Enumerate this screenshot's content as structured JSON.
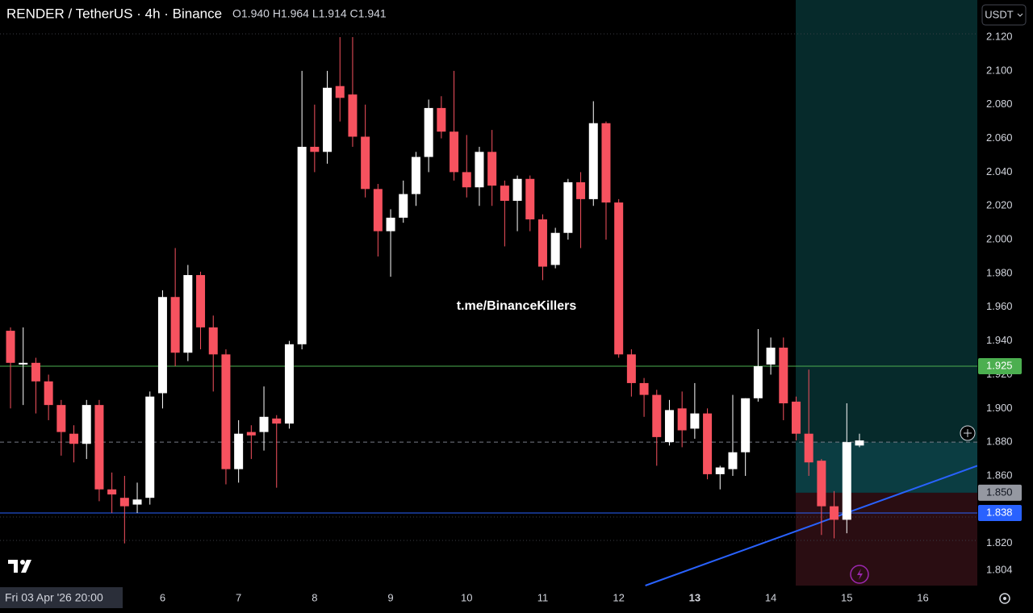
{
  "chart_data": {
    "type": "candlestick",
    "title": "RENDER / TetherUS · 4h · Binance",
    "ohlc_summary": "O1.940 H1.964 L1.914 C1.941",
    "watermark": "t.me/BinanceKillers",
    "currency": "USDT",
    "crosshair_label": "Fri 03 Apr '26  20:00",
    "up_color": "#ffffff",
    "down_color": "#f7525f",
    "open": [
      1.946,
      1.926,
      1.927,
      1.916,
      1.902,
      1.885,
      1.879,
      1.902,
      1.852,
      1.847,
      1.843,
      1.847,
      1.909,
      1.966,
      1.933,
      1.979,
      1.948,
      1.932,
      1.864,
      1.886,
      1.886,
      1.894,
      1.891,
      1.938,
      2.055,
      2.052,
      2.091,
      2.086,
      2.061,
      2.03,
      2.005,
      2.013,
      2.027,
      2.049,
      2.078,
      2.064,
      2.04,
      2.031,
      2.052,
      2.032,
      2.023,
      2.036,
      2.012,
      1.985,
      2.004,
      2.034,
      2.024,
      2.069,
      2.022,
      1.932,
      1.915,
      1.908,
      1.88,
      1.9,
      1.888,
      1.897,
      1.861,
      1.864,
      1.874,
      1.906,
      1.926,
      1.936,
      1.904,
      1.885,
      1.869,
      1.842,
      1.834,
      1.878
    ],
    "high": [
      1.948,
      1.948,
      1.93,
      1.92,
      1.905,
      1.89,
      1.905,
      1.905,
      1.862,
      1.86,
      1.856,
      1.91,
      1.97,
      1.995,
      1.985,
      1.981,
      1.955,
      1.935,
      1.893,
      1.89,
      1.913,
      1.896,
      1.94,
      2.1,
      2.08,
      2.1,
      2.12,
      2.12,
      2.08,
      2.033,
      2.018,
      2.035,
      2.052,
      2.083,
      2.085,
      2.1,
      2.062,
      2.055,
      2.065,
      2.035,
      2.038,
      2.038,
      2.015,
      2.007,
      2.036,
      2.04,
      2.082,
      2.07,
      2.024,
      1.935,
      1.918,
      1.911,
      1.905,
      1.91,
      1.915,
      1.9,
      1.866,
      1.908,
      1.906,
      1.947,
      1.942,
      1.942,
      1.907,
      1.923,
      1.87,
      1.851,
      1.903,
      1.885
    ],
    "low": [
      1.9,
      1.902,
      1.897,
      1.893,
      1.872,
      1.868,
      1.87,
      1.845,
      1.838,
      1.82,
      1.838,
      1.843,
      1.9,
      1.925,
      1.928,
      1.935,
      1.91,
      1.855,
      1.856,
      1.87,
      1.875,
      1.853,
      1.888,
      1.935,
      2.04,
      2.045,
      2.07,
      2.055,
      2.025,
      1.99,
      1.978,
      2.01,
      2.02,
      2.04,
      2.06,
      2.035,
      2.025,
      2.02,
      2.02,
      1.996,
      2.005,
      2.005,
      1.976,
      1.983,
      2.0,
      1.995,
      2.02,
      2.0,
      1.93,
      1.907,
      1.895,
      1.866,
      1.878,
      1.877,
      1.882,
      1.858,
      1.852,
      1.86,
      1.86,
      1.904,
      1.92,
      1.893,
      1.881,
      1.86,
      1.825,
      1.823,
      1.826,
      1.877
    ],
    "close": [
      1.927,
      1.927,
      1.916,
      1.902,
      1.886,
      1.879,
      1.902,
      1.852,
      1.849,
      1.842,
      1.846,
      1.907,
      1.966,
      1.933,
      1.979,
      1.948,
      1.932,
      1.864,
      1.885,
      1.884,
      1.895,
      1.891,
      1.938,
      2.055,
      2.052,
      2.09,
      2.084,
      2.061,
      2.03,
      2.005,
      2.013,
      2.027,
      2.049,
      2.078,
      2.064,
      2.04,
      2.031,
      2.052,
      2.032,
      2.023,
      2.036,
      2.012,
      1.984,
      2.004,
      2.034,
      2.024,
      2.069,
      2.022,
      1.932,
      1.915,
      1.908,
      1.883,
      1.899,
      1.887,
      1.897,
      1.861,
      1.865,
      1.874,
      1.906,
      1.925,
      1.936,
      1.903,
      1.885,
      1.868,
      1.842,
      1.834,
      1.88,
      1.881
    ],
    "xlim": [
      -0.83,
      76.3
    ],
    "ylim": [
      1.795,
      2.142
    ],
    "yticks": [
      {
        "value": 2.12,
        "label": "2.120"
      },
      {
        "value": 2.1,
        "label": "2.100"
      },
      {
        "value": 2.08,
        "label": "2.080"
      },
      {
        "value": 2.06,
        "label": "2.060"
      },
      {
        "value": 2.04,
        "label": "2.040"
      },
      {
        "value": 2.02,
        "label": "2.020"
      },
      {
        "value": 2.0,
        "label": "2.000"
      },
      {
        "value": 1.98,
        "label": "1.980"
      },
      {
        "value": 1.96,
        "label": "1.960"
      },
      {
        "value": 1.94,
        "label": "1.940"
      },
      {
        "value": 1.92,
        "label": "1.920"
      },
      {
        "value": 1.9,
        "label": "1.900"
      },
      {
        "value": 1.86,
        "label": "1.860"
      },
      {
        "value": 1.82,
        "label": "1.820"
      },
      {
        "value": 1.804,
        "label": "1.804"
      }
    ],
    "xticks": [
      {
        "value": 12,
        "label": "6"
      },
      {
        "value": 18,
        "label": "7"
      },
      {
        "value": 24,
        "label": "8"
      },
      {
        "value": 30,
        "label": "9"
      },
      {
        "value": 36,
        "label": "10"
      },
      {
        "value": 42,
        "label": "11"
      },
      {
        "value": 48,
        "label": "12"
      },
      {
        "value": 54,
        "label": "13"
      },
      {
        "value": 60,
        "label": "14"
      },
      {
        "value": 66,
        "label": "15"
      },
      {
        "value": 72,
        "label": "16"
      }
    ],
    "price_lines": [
      {
        "value": 1.925,
        "label": "1.925",
        "color": "#4caf50",
        "style": "solid"
      },
      {
        "value": 1.88,
        "label": "1.880",
        "color": "#787b86",
        "style": "dashed"
      },
      {
        "value": 1.85,
        "label": "1.850",
        "color": "#9598a1",
        "style": "solid"
      },
      {
        "value": 1.838,
        "label": "1.838",
        "color": "#2962ff",
        "style": "solid"
      }
    ],
    "trendline": {
      "color": "#2962ff",
      "start": [
        50.1,
        1.795
      ],
      "end": [
        76.3,
        1.866
      ]
    }
  }
}
